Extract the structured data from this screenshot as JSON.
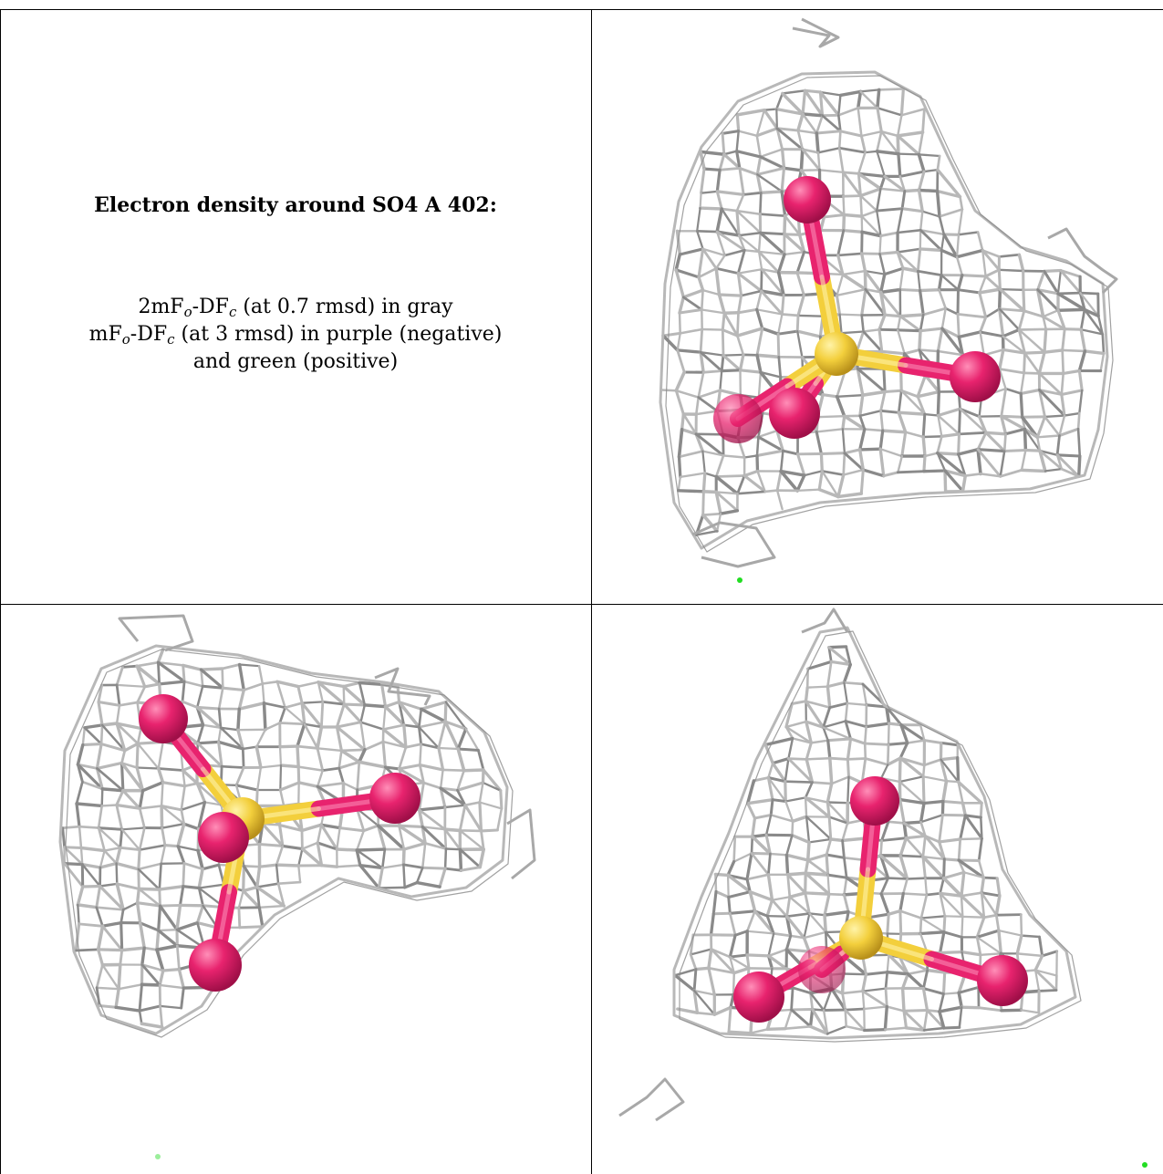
{
  "caption": {
    "title": "Electron density around SO4 A 402:",
    "map_2fo_prefix": "2mF",
    "map_2fo_sub1": "o",
    "map_2fo_mid": "-DF",
    "map_2fo_sub2": "c",
    "map_2fo_rest": " (at 0.7 rmsd) in gray",
    "map_fo_prefix": "mF",
    "map_fo_sub1": "o",
    "map_fo_mid": "-DF",
    "map_fo_sub2": "c",
    "map_fo_rest": " (at 3 rmsd) in purple (negative)",
    "map_fo_line3": "and green (positive)"
  },
  "colors": {
    "mesh": "#b8b8b8",
    "mesh_dark": "#8a8a8a",
    "oxygen": "#e8236e",
    "sulfur": "#f3cf3c",
    "positive": "#22dd22"
  },
  "views": [
    {
      "name": "view-top-right",
      "description_icon": "so4-molecule-icon"
    },
    {
      "name": "view-bottom-left",
      "description_icon": "so4-molecule-icon"
    },
    {
      "name": "view-bottom-right",
      "description_icon": "so4-molecule-icon"
    }
  ]
}
